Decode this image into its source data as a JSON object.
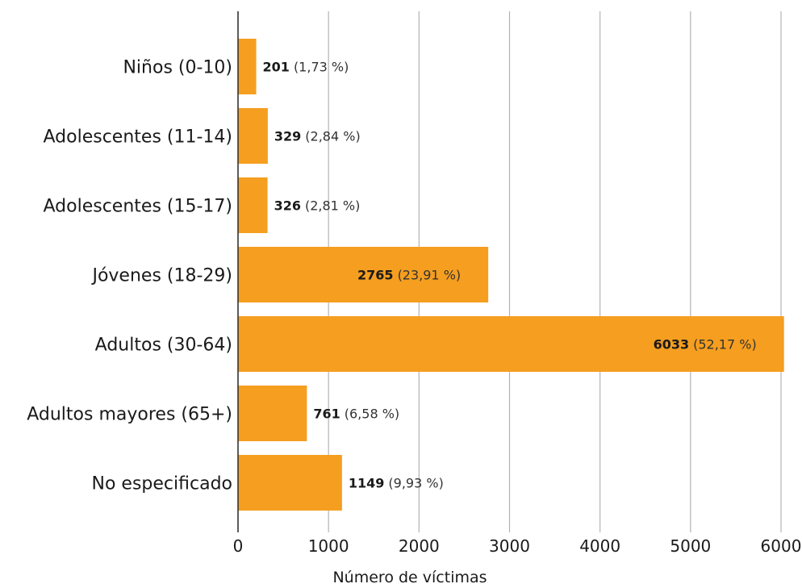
{
  "chart_data": {
    "type": "bar",
    "orientation": "horizontal",
    "categories": [
      "Niños (0-10)",
      "Adolescentes (11-14)",
      "Adolescentes (15-17)",
      "Jóvenes (18-29)",
      "Adultos (30-64)",
      "Adultos mayores (65+)",
      "No especificado"
    ],
    "values": [
      201,
      329,
      326,
      2765,
      6033,
      761,
      1149
    ],
    "percent_labels": [
      "(1,73 %)",
      "(2,84 %)",
      "(2,81 %)",
      "(23,91 %)",
      "(52,17 %)",
      "(6,58 %)",
      "(9,93 %)"
    ],
    "xlabel": "Número de víctimas",
    "ylabel": "",
    "xlim": [
      0,
      6000
    ],
    "xticks": [
      0,
      1000,
      2000,
      3000,
      4000,
      5000,
      6000
    ],
    "grid": "vertical",
    "bar_color": "#F59E1F",
    "label_position_inside_for": [
      3,
      4
    ]
  }
}
